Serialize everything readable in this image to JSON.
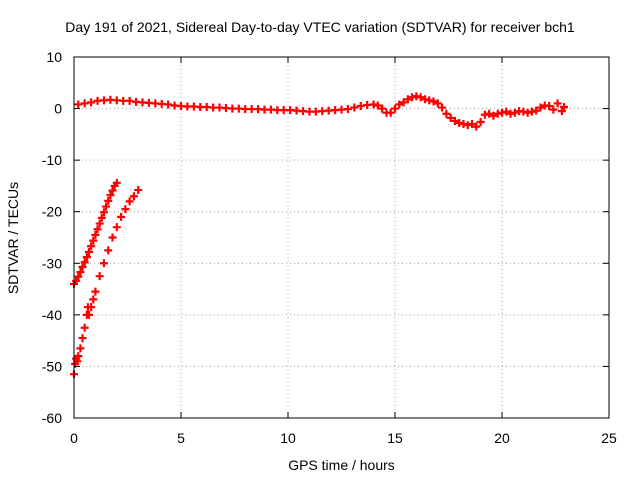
{
  "chart_data": {
    "type": "scatter",
    "title": "Day 191 of 2021, Sidereal Day-to-day VTEC variation (SDTVAR) for receiver bch1",
    "xlabel": "GPS time / hours",
    "ylabel": "SDTVAR / TECUs",
    "xlim": [
      0,
      25
    ],
    "ylim": [
      -60,
      10
    ],
    "xticks": [
      0,
      5,
      10,
      15,
      20,
      25
    ],
    "yticks": [
      -60,
      -50,
      -40,
      -30,
      -20,
      -10,
      0,
      10
    ],
    "xtick_labels": [
      "0",
      "5",
      "10",
      "15",
      "20",
      "25"
    ],
    "ytick_labels": [
      "-60",
      "-50",
      "-40",
      "-30",
      "-20",
      "-10",
      "0",
      "10"
    ],
    "grid": true,
    "marker": "+",
    "color": "#ff0000",
    "series": [
      {
        "name": "main trace",
        "points": [
          [
            0.2,
            0.8
          ],
          [
            0.5,
            1.0
          ],
          [
            0.8,
            1.2
          ],
          [
            1.1,
            1.5
          ],
          [
            1.4,
            1.6
          ],
          [
            1.7,
            1.7
          ],
          [
            2.0,
            1.6
          ],
          [
            2.3,
            1.5
          ],
          [
            2.6,
            1.5
          ],
          [
            2.9,
            1.3
          ],
          [
            3.2,
            1.2
          ],
          [
            3.5,
            1.1
          ],
          [
            3.8,
            1.0
          ],
          [
            4.1,
            0.9
          ],
          [
            4.4,
            0.8
          ],
          [
            4.7,
            0.6
          ],
          [
            5.0,
            0.5
          ],
          [
            5.3,
            0.4
          ],
          [
            5.6,
            0.4
          ],
          [
            5.9,
            0.3
          ],
          [
            6.2,
            0.3
          ],
          [
            6.5,
            0.2
          ],
          [
            6.8,
            0.2
          ],
          [
            7.1,
            0.1
          ],
          [
            7.4,
            0.0
          ],
          [
            7.7,
            0.0
          ],
          [
            8.0,
            -0.1
          ],
          [
            8.3,
            -0.1
          ],
          [
            8.6,
            -0.1
          ],
          [
            8.9,
            -0.2
          ],
          [
            9.2,
            -0.2
          ],
          [
            9.5,
            -0.3
          ],
          [
            9.8,
            -0.3
          ],
          [
            10.1,
            -0.3
          ],
          [
            10.4,
            -0.4
          ],
          [
            10.7,
            -0.5
          ],
          [
            11.0,
            -0.6
          ],
          [
            11.3,
            -0.6
          ],
          [
            11.6,
            -0.5
          ],
          [
            11.9,
            -0.4
          ],
          [
            12.2,
            -0.3
          ],
          [
            12.5,
            -0.2
          ],
          [
            12.8,
            -0.1
          ],
          [
            13.1,
            0.2
          ],
          [
            13.4,
            0.5
          ],
          [
            13.7,
            0.7
          ],
          [
            14.0,
            0.8
          ],
          [
            14.2,
            0.6
          ],
          [
            14.4,
            0.0
          ],
          [
            14.6,
            -0.8
          ],
          [
            14.8,
            -0.8
          ],
          [
            15.0,
            0.0
          ],
          [
            15.2,
            0.8
          ],
          [
            15.4,
            1.2
          ],
          [
            15.6,
            1.8
          ],
          [
            15.8,
            2.2
          ],
          [
            16.0,
            2.4
          ],
          [
            16.2,
            2.2
          ],
          [
            16.4,
            1.8
          ],
          [
            16.6,
            1.6
          ],
          [
            16.8,
            1.4
          ],
          [
            17.0,
            1.0
          ],
          [
            17.2,
            0.2
          ],
          [
            17.4,
            -1.0
          ],
          [
            17.6,
            -1.8
          ],
          [
            17.8,
            -2.4
          ],
          [
            18.0,
            -2.8
          ],
          [
            18.2,
            -3.0
          ],
          [
            18.4,
            -3.2
          ],
          [
            18.6,
            -3.0
          ],
          [
            18.8,
            -3.5
          ],
          [
            19.0,
            -2.6
          ],
          [
            19.2,
            -1.2
          ],
          [
            19.4,
            -1.0
          ],
          [
            19.6,
            -1.4
          ],
          [
            19.8,
            -1.0
          ],
          [
            20.0,
            -0.8
          ],
          [
            20.2,
            -0.6
          ],
          [
            20.4,
            -1.0
          ],
          [
            20.6,
            -0.8
          ],
          [
            20.8,
            -0.5
          ],
          [
            21.0,
            -0.6
          ],
          [
            21.2,
            -0.8
          ],
          [
            21.4,
            -0.6
          ],
          [
            21.6,
            -0.4
          ],
          [
            21.8,
            0.2
          ],
          [
            22.0,
            0.6
          ],
          [
            22.2,
            0.5
          ],
          [
            22.4,
            -0.2
          ],
          [
            22.6,
            1.0
          ],
          [
            22.8,
            -0.5
          ],
          [
            22.9,
            0.3
          ]
        ]
      },
      {
        "name": "upper descending arc",
        "points": [
          [
            0.0,
            -34.0
          ],
          [
            0.1,
            -33.4
          ],
          [
            0.2,
            -32.6
          ],
          [
            0.3,
            -31.7
          ],
          [
            0.4,
            -30.7
          ],
          [
            0.5,
            -29.8
          ],
          [
            0.6,
            -28.8
          ],
          [
            0.7,
            -27.8
          ],
          [
            0.8,
            -26.7
          ],
          [
            0.9,
            -25.6
          ],
          [
            1.0,
            -24.5
          ],
          [
            1.1,
            -23.4
          ],
          [
            1.2,
            -22.3
          ],
          [
            1.3,
            -21.2
          ],
          [
            1.4,
            -20.1
          ],
          [
            1.5,
            -19.0
          ],
          [
            1.6,
            -17.9
          ],
          [
            1.7,
            -16.8
          ],
          [
            1.8,
            -15.9
          ],
          [
            1.9,
            -15.0
          ],
          [
            2.0,
            -14.4
          ]
        ]
      },
      {
        "name": "lower descending arc",
        "points": [
          [
            0.0,
            -51.5
          ],
          [
            0.05,
            -49.5
          ],
          [
            0.1,
            -48.5
          ],
          [
            0.15,
            -49.0
          ],
          [
            0.2,
            -48.0
          ],
          [
            0.3,
            -46.5
          ],
          [
            0.4,
            -44.5
          ],
          [
            0.5,
            -42.5
          ],
          [
            0.6,
            -40.0
          ],
          [
            0.65,
            -38.5
          ],
          [
            0.7,
            -40.0
          ],
          [
            0.8,
            -38.5
          ],
          [
            0.9,
            -37.0
          ],
          [
            1.0,
            -35.5
          ],
          [
            1.2,
            -32.5
          ],
          [
            1.4,
            -30.0
          ],
          [
            1.6,
            -27.5
          ],
          [
            1.8,
            -25.0
          ],
          [
            2.0,
            -23.0
          ],
          [
            2.2,
            -21.0
          ],
          [
            2.4,
            -19.5
          ],
          [
            2.6,
            -18.0
          ],
          [
            2.8,
            -17.0
          ],
          [
            3.0,
            -15.8
          ]
        ]
      }
    ]
  }
}
